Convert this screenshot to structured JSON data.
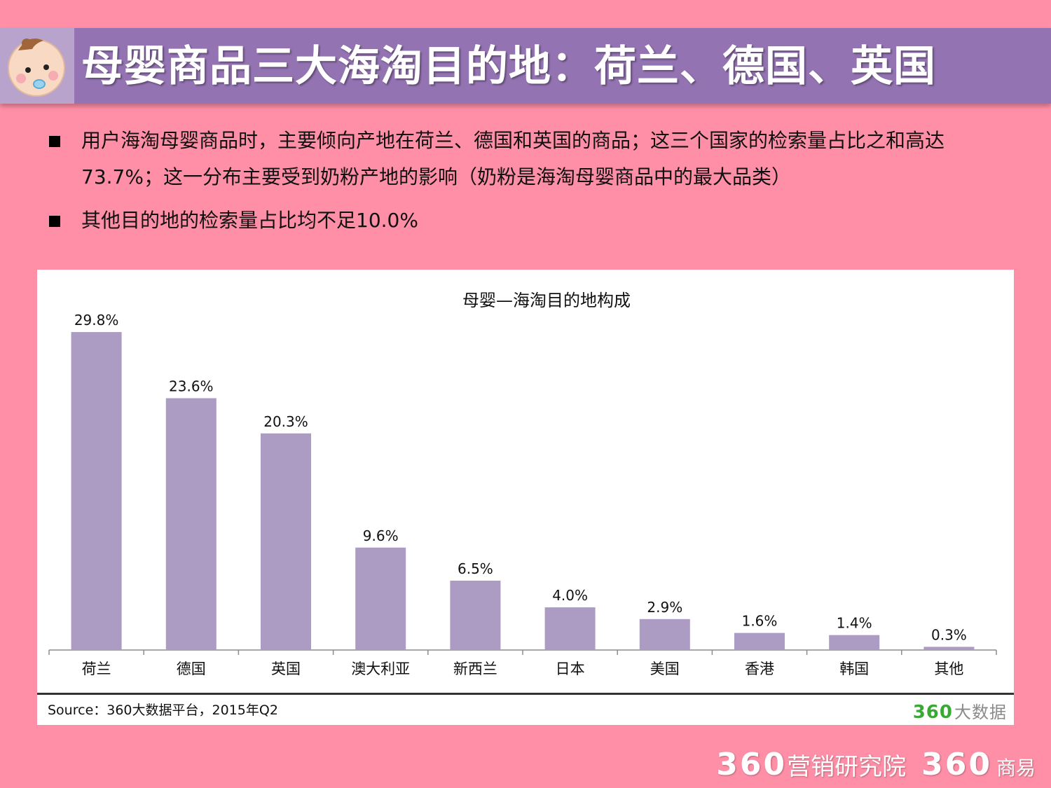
{
  "header": {
    "title": "母婴商品三大海淘目的地：荷兰、德国、英国",
    "logo_icon": "baby-face-icon"
  },
  "bullets": [
    "用户海淘母婴商品时，主要倾向产地在荷兰、德国和英国的商品；这三个国家的检索量占比之和高达73.7%；这一分布主要受到奶粉产地的影响（奶粉是海淘母婴商品中的最大品类）",
    "其他目的地的检索量占比均不足10.0%"
  ],
  "chart_data": {
    "type": "bar",
    "title": "母婴—海淘目的地构成",
    "categories": [
      "荷兰",
      "德国",
      "英国",
      "澳大利亚",
      "新西兰",
      "日本",
      "美国",
      "香港",
      "韩国",
      "其他"
    ],
    "values": [
      29.8,
      23.6,
      20.3,
      9.6,
      6.5,
      4.0,
      2.9,
      1.6,
      1.4,
      0.3
    ],
    "value_labels": [
      "29.8%",
      "23.6%",
      "20.3%",
      "9.6%",
      "6.5%",
      "4.0%",
      "2.9%",
      "1.6%",
      "1.4%",
      "0.3%"
    ],
    "ylim": [
      0,
      30
    ],
    "bar_color": "#ac9bc3",
    "grid": false,
    "legend": "none"
  },
  "source": {
    "text": "Source：360大数据平台，2015年Q2",
    "brand_num": "360",
    "brand_text": "大数据"
  },
  "footer": {
    "brand1_num": "360",
    "brand1_text": "营销研究院",
    "brand2_num": "360",
    "brand2_text": "商易"
  }
}
